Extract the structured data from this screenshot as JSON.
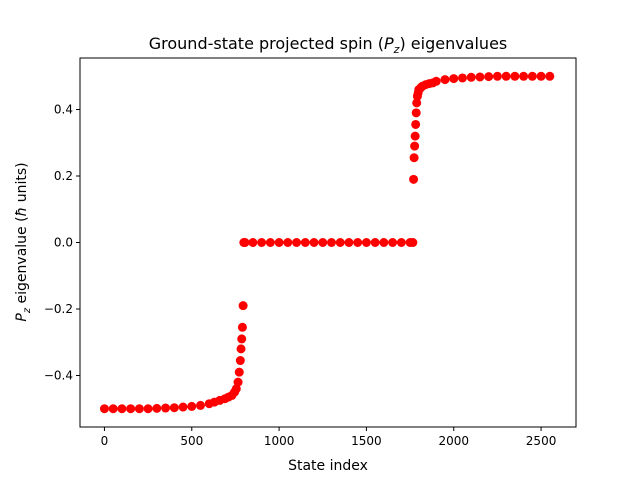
{
  "chart_data": {
    "type": "scatter",
    "title": "Ground-state projected spin (P_z) eigenvalues",
    "title_parts": {
      "prefix": "Ground-state projected spin (",
      "symbol": "P",
      "subscript": "z",
      "suffix": ") eigenvalues"
    },
    "xlabel": "State index",
    "ylabel": "P_z eigenvalue (ħ units)",
    "ylabel_parts": {
      "symbol": "P",
      "subscript": "z",
      "suffix": " eigenvalue (",
      "hbar": "ħ",
      "tail": " units)"
    },
    "xlim": [
      -140,
      2700
    ],
    "ylim": [
      -0.555,
      0.555
    ],
    "xticks": [
      0,
      500,
      1000,
      1500,
      2000,
      2500
    ],
    "yticks": [
      -0.4,
      -0.2,
      0.0,
      0.2,
      0.4
    ],
    "ytick_labels": [
      "−0.4",
      "−0.2",
      "0.0",
      "0.2",
      "0.4"
    ],
    "grid": false,
    "marker_color": "#ff0000",
    "series": [
      {
        "x": [
          0,
          50,
          100,
          150,
          200,
          250,
          300,
          350,
          400,
          450,
          500,
          550,
          600,
          630,
          660,
          690,
          710,
          730,
          745,
          755,
          765,
          772,
          778,
          782,
          786,
          790,
          794,
          798,
          801,
          805,
          850,
          900,
          950,
          1000,
          1050,
          1100,
          1150,
          1200,
          1250,
          1300,
          1350,
          1400,
          1450,
          1500,
          1550,
          1600,
          1650,
          1700,
          1750,
          1766,
          1770,
          1773,
          1776,
          1779,
          1782,
          1785,
          1788,
          1792,
          1796,
          1800,
          1810,
          1820,
          1840,
          1860,
          1880,
          1900,
          1950,
          2000,
          2050,
          2100,
          2150,
          2200,
          2250,
          2300,
          2350,
          2400,
          2450,
          2500,
          2550
        ],
        "y": [
          -0.5,
          -0.5,
          -0.5,
          -0.5,
          -0.5,
          -0.5,
          -0.499,
          -0.498,
          -0.497,
          -0.495,
          -0.493,
          -0.49,
          -0.485,
          -0.48,
          -0.475,
          -0.47,
          -0.465,
          -0.46,
          -0.45,
          -0.44,
          -0.42,
          -0.39,
          -0.355,
          -0.32,
          -0.29,
          -0.255,
          -0.19,
          0.0,
          0.0,
          0.0,
          0.0,
          0.0,
          0.0,
          0.0,
          0.0,
          0.0,
          0.0,
          0.0,
          0.0,
          0.0,
          0.0,
          0.0,
          0.0,
          0.0,
          0.0,
          0.0,
          0.0,
          0.0,
          0.0,
          0.0,
          0.19,
          0.255,
          0.29,
          0.32,
          0.355,
          0.39,
          0.42,
          0.44,
          0.45,
          0.46,
          0.465,
          0.47,
          0.475,
          0.478,
          0.48,
          0.485,
          0.49,
          0.493,
          0.495,
          0.497,
          0.498,
          0.499,
          0.5,
          0.5,
          0.5,
          0.5,
          0.5,
          0.5,
          0.5
        ]
      }
    ]
  }
}
